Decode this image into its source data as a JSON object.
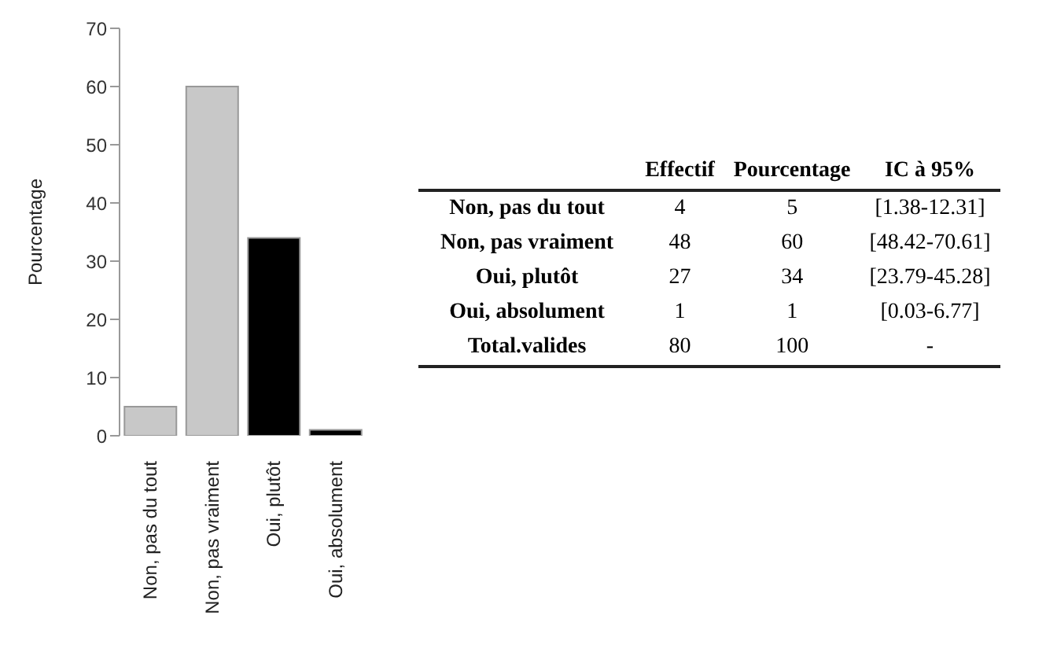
{
  "chart_data": [
    {
      "type": "bar",
      "ylabel": "Pourcentage",
      "categories": [
        "Non, pas du tout",
        "Non, pas vraiment",
        "Oui, plutôt",
        "Oui, absolument"
      ],
      "values": [
        5,
        60,
        34,
        1
      ],
      "colors": [
        "#c8c8c8",
        "#c8c8c8",
        "#000000",
        "#000000"
      ],
      "ylim": [
        0,
        70
      ],
      "yticks": [
        0,
        10,
        20,
        30,
        40,
        50,
        60,
        70
      ],
      "grid": false,
      "legend": false
    },
    {
      "type": "other",
      "categories": [
        "Effectif",
        "Pourcentage",
        "IC à 95%"
      ],
      "y_categories": [
        "Non, pas du tout",
        "Non, pas vraiment",
        "Oui, plutôt",
        "Oui, absolument",
        "Total.valides"
      ],
      "cell_labels": [
        [
          "4",
          "5",
          "[1.38-12.31]"
        ],
        [
          "48",
          "60",
          "[48.42-70.61]"
        ],
        [
          "27",
          "34",
          "[23.79-45.28]"
        ],
        [
          "1",
          "1",
          "[0.03-6.77]"
        ],
        [
          "80",
          "100",
          "-"
        ]
      ]
    }
  ]
}
